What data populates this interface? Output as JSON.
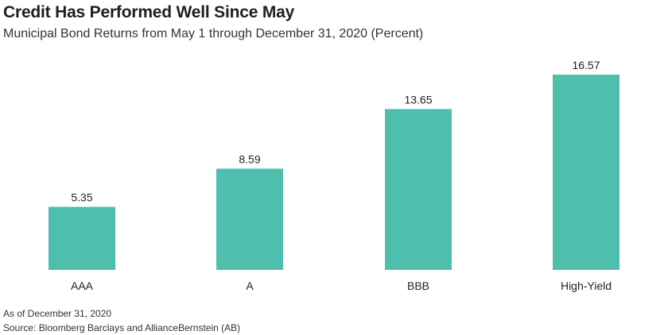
{
  "title": "Credit Has Performed Well Since May",
  "subtitle": "Municipal Bond Returns from May 1 through December 31, 2020 (Percent)",
  "footnotes": {
    "as_of": "As of December 31, 2020",
    "source": "Source: Bloomberg Barclays and AllianceBernstein (AB)"
  },
  "colors": {
    "bar": "#4fbfad",
    "text": "#222222"
  },
  "chart_data": {
    "type": "bar",
    "categories": [
      "AAA",
      "A",
      "BBB",
      "High-Yield"
    ],
    "values": [
      5.35,
      8.59,
      13.65,
      16.57
    ],
    "value_labels": [
      "5.35",
      "8.59",
      "13.65",
      "16.57"
    ],
    "title": "Credit Has Performed Well Since May",
    "subtitle": "Municipal Bond Returns from May 1 through December 31, 2020 (Percent)",
    "xlabel": "",
    "ylabel": "",
    "ylim": [
      0,
      16.57
    ],
    "grid": false,
    "legend": "none"
  }
}
